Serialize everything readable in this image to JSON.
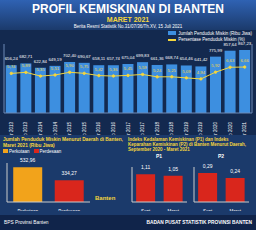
{
  "header": {
    "title": "PROFIL KEMISKINAN DI BANTEN",
    "subtitle": "MARET 2021",
    "note": "Berita Resmi Statistik No.31/07/36/Th.XV, 15 Juli 2021"
  },
  "chart_data": [
    {
      "type": "bar",
      "categories": [
        "Mar 2013",
        "Sep 2013",
        "Mar 2014",
        "Sep 2014",
        "Mar 2015",
        "Sep 2015",
        "Mar 2016",
        "Sep 2016",
        "Mar 2017",
        "Sep 2017",
        "Mar 2018",
        "Sep 2018",
        "Mar 2019",
        "Sep 2019",
        "Mar 2020",
        "Sep 2020",
        "Mar 2021"
      ],
      "series": [
        {
          "name": "Jumlah Penduduk Miskin (Ribu Jiwa)",
          "type": "bar",
          "color": "#3d8fe0",
          "values": [
            656.24,
            682.71,
            622.84,
            649.19,
            702.4,
            690.67,
            658.11,
            657.74,
            675.04,
            699.83,
            661.36,
            668.74,
            654.46,
            641.42,
            775.99,
            857.64,
            867.23
          ],
          "value_labels": [
            "656,24",
            "682,71",
            "622,84",
            "649,19",
            "702,40",
            "690,67",
            "658,11",
            "657,74",
            "675,04",
            "699,83",
            "661,36",
            "668,74",
            "654,46",
            "641,42",
            "775,99",
            "857,64",
            "867,23"
          ]
        },
        {
          "name": "Persentase Penduduk Miskin (%)",
          "type": "line",
          "axis": "y2",
          "color": "#f5d63d",
          "marker": "circle",
          "values": [
            5.74,
            5.89,
            5.35,
            5.51,
            5.9,
            5.75,
            5.42,
            5.36,
            5.45,
            5.59,
            5.24,
            5.25,
            5.09,
            4.94,
            5.92,
            6.63,
            6.66
          ],
          "value_labels": [
            "5,74",
            "5,89",
            "5,35",
            "5,51",
            "5,90",
            "5,75",
            "5,42",
            "5,36",
            "5,45",
            "5,59",
            "5,24",
            "5,25",
            "5,09",
            "4,94",
            "5,92",
            "6,63",
            "6,66"
          ]
        }
      ],
      "ylim": [
        0,
        950
      ],
      "y2lim": [
        0,
        10
      ],
      "data_labels": true,
      "tick_labels": "x"
    },
    {
      "type": "bar",
      "title": "Jumlah Penduduk Miskin Menurut Daerah di Banten, Maret 2021 (Ribu Jiwa)",
      "categories": [
        "Perkotaan",
        "Perdesaan"
      ],
      "values": [
        532.96,
        334.27
      ],
      "value_labels": [
        "532,96",
        "334,27"
      ],
      "colors": [
        "#f2a31b",
        "#d9261c"
      ],
      "ylim": [
        0,
        600
      ],
      "data_labels": true,
      "tick_labels": "x",
      "annotation": "Banten"
    },
    {
      "type": "bar",
      "title": "Indeks Kedalaman Kemiskinan (P1) dan Indeks Keparahan Kemiskinan (P2) di Banten Menurut Daerah, September 2020 - Maret 2021",
      "subtitle": "P1",
      "categories": [
        "Sept 2020",
        "Maret 2021"
      ],
      "values": [
        1.11,
        1.05
      ],
      "value_labels": [
        "1,11",
        "1,05"
      ],
      "color": "#d9261c",
      "ylim": [
        0,
        1.4
      ],
      "data_labels": true,
      "tick_labels": "x"
    },
    {
      "type": "bar",
      "subtitle": "P2",
      "categories": [
        "Sept 2020",
        "Maret 2021"
      ],
      "values": [
        0.29,
        0.24
      ],
      "value_labels": [
        "0,29",
        "0,24"
      ],
      "color": "#d9261c",
      "ylim": [
        0,
        0.35
      ],
      "data_labels": true,
      "tick_labels": "x"
    }
  ],
  "footer": {
    "left": "BPS Provinsi Banten",
    "right": "BADAN PUSAT STATISTIK PROVINSI BANTEN"
  }
}
